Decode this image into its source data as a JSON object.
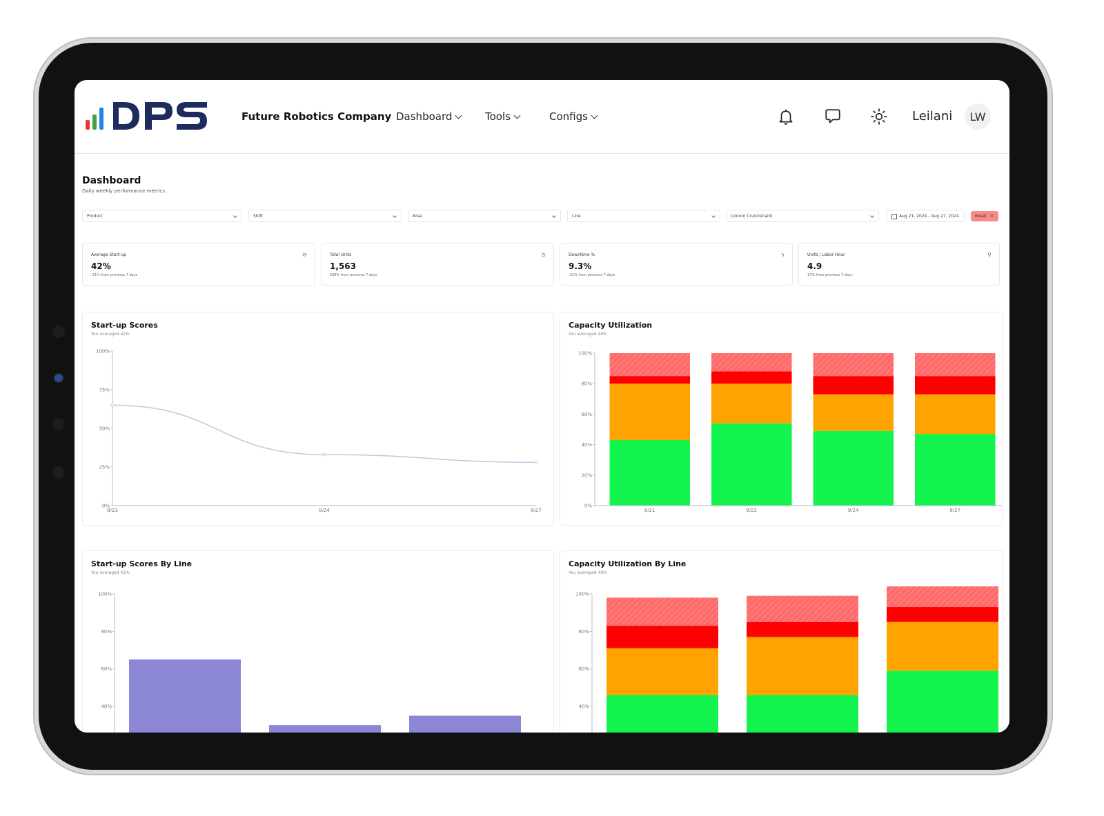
{
  "header": {
    "company": "Future Robotics Company",
    "nav": [
      {
        "label": "Dashboard"
      },
      {
        "label": "Tools"
      },
      {
        "label": "Configs"
      }
    ],
    "user_name": "Leilani",
    "avatar_initials": "LW",
    "icons": [
      "bell-icon",
      "chat-icon",
      "sun-icon"
    ],
    "logo_text": "DPS"
  },
  "page": {
    "title": "Dashboard",
    "subtitle": "Daily weekly performance metrics."
  },
  "filters": {
    "product": "Product",
    "shift": "Shift",
    "area": "Area",
    "line": "Line",
    "person": "Connor Cruickshank",
    "date_range": "Aug 21, 2024 - Aug 27, 2024",
    "reset_label": "Reset"
  },
  "kpis": [
    {
      "label": "Average Start-up",
      "value": "42%",
      "change": "-21% from previous 7 days",
      "icon": "refresh-icon"
    },
    {
      "label": "Total Units",
      "value": "1,563",
      "change": "338% from previous 7 days",
      "icon": "box-icon"
    },
    {
      "label": "Downtime %",
      "value": "9.3%",
      "change": "-21% from previous 7 days",
      "icon": "bolt-icon"
    },
    {
      "label": "Units / Labor Hour",
      "value": "4.9",
      "change": "17% from previous 7 days",
      "icon": "user-icon"
    }
  ],
  "colors": {
    "green": "#13f54e",
    "orange": "#ffa300",
    "red": "#ff0000",
    "light_red": "#ff6b6b",
    "purple": "#8b87d6",
    "line": "#c9c3e0"
  },
  "chart_data": [
    {
      "type": "line",
      "title": "Start-up Scores",
      "subtitle": "You averaged 42%",
      "x": [
        "8/23",
        "8/24",
        "8/27"
      ],
      "values": [
        65,
        33,
        28
      ],
      "ylim": [
        0,
        100
      ],
      "yticks": [
        "0%",
        "25%",
        "50%",
        "75%",
        "100%"
      ]
    },
    {
      "type": "bar",
      "stacked": true,
      "title": "Capacity Utilization",
      "subtitle": "You averaged 49%",
      "categories": [
        "8/21",
        "8/22",
        "8/24",
        "8/27"
      ],
      "series": [
        {
          "color": "#13f54e",
          "values": [
            43,
            54,
            49,
            47
          ]
        },
        {
          "color": "#ffa300",
          "values": [
            37,
            26,
            24,
            26
          ]
        },
        {
          "color": "#ff0000",
          "values": [
            5,
            8,
            12,
            12
          ]
        },
        {
          "color": "#ff6b6b",
          "values": [
            15,
            12,
            15,
            15
          ]
        }
      ],
      "ylim": [
        0,
        100
      ],
      "yticks": [
        "0%",
        "20%",
        "40%",
        "60%",
        "80%",
        "100%"
      ]
    },
    {
      "type": "bar",
      "title": "Start-up Scores By Line",
      "subtitle": "You averaged 42%",
      "values": [
        65,
        30,
        35
      ],
      "ylim": [
        0,
        100
      ],
      "yticks": [
        "40%",
        "60%",
        "80%",
        "100%"
      ]
    },
    {
      "type": "bar",
      "stacked": true,
      "title": "Capacity Utilization By Line",
      "subtitle": "You averaged 49%",
      "series": [
        {
          "color": "#13f54e",
          "values": [
            46,
            46,
            59
          ]
        },
        {
          "color": "#ffa300",
          "values": [
            25,
            31,
            26
          ]
        },
        {
          "color": "#ff0000",
          "values": [
            12,
            8,
            8
          ]
        },
        {
          "color": "#ff6b6b",
          "values": [
            15,
            14,
            11
          ]
        }
      ],
      "ylim": [
        0,
        100
      ],
      "yticks": [
        "40%",
        "60%",
        "80%",
        "100%"
      ]
    }
  ]
}
